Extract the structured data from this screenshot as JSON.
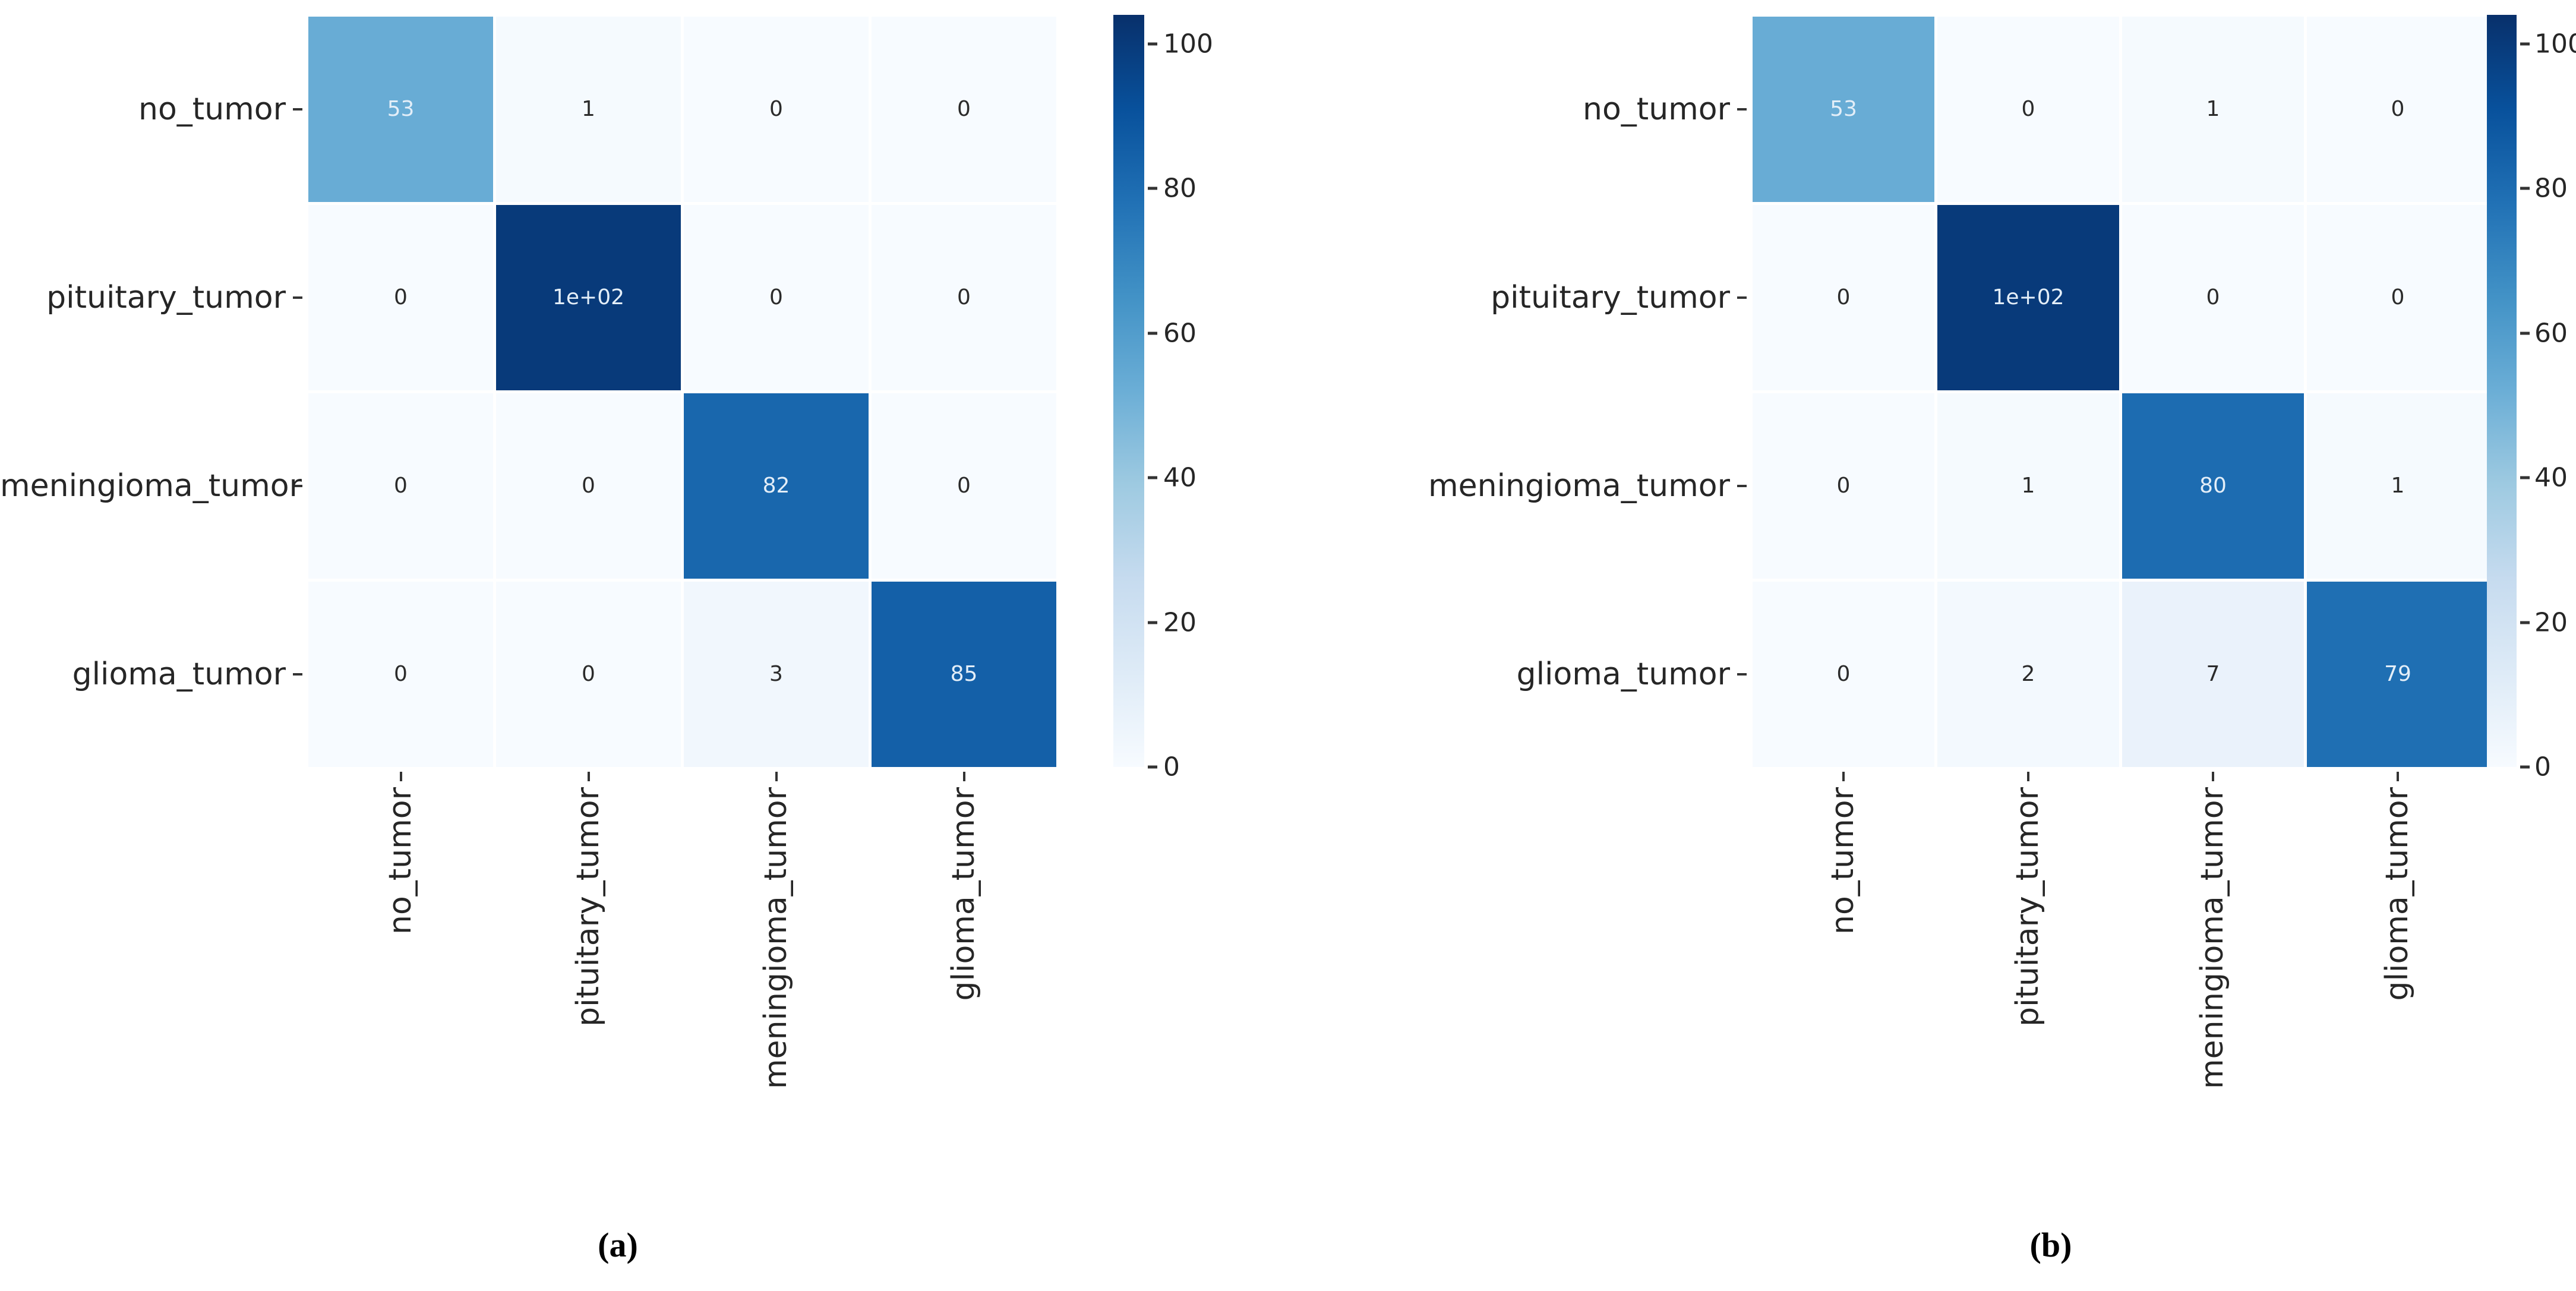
{
  "chart_data": [
    {
      "type": "heatmap",
      "caption": "(a)",
      "x_categories": [
        "no_tumor",
        "pituitary_tumor",
        "meningioma_tumor",
        "glioma_tumor"
      ],
      "y_categories": [
        "no_tumor",
        "pituitary_tumor",
        "meningioma_tumor",
        "glioma_tumor"
      ],
      "values": [
        [
          53,
          1,
          0,
          0
        ],
        [
          0,
          100,
          0,
          0
        ],
        [
          0,
          0,
          82,
          0
        ],
        [
          0,
          0,
          3,
          85
        ]
      ],
      "annotations": [
        [
          "53",
          "1",
          "0",
          "0"
        ],
        [
          "0",
          "1e+02",
          "0",
          "0"
        ],
        [
          "0",
          "0",
          "82",
          "0"
        ],
        [
          "0",
          "0",
          "3",
          "85"
        ]
      ],
      "colormap": "Blues",
      "vmin": 0,
      "vmax": 104,
      "colorbar_ticks": [
        0,
        20,
        40,
        60,
        80,
        100
      ],
      "colorbar_position": "right",
      "grid": "off"
    },
    {
      "type": "heatmap",
      "caption": "(b)",
      "x_categories": [
        "no_tumor",
        "pituitary_tumor",
        "meningioma_tumor",
        "glioma_tumor"
      ],
      "y_categories": [
        "no_tumor",
        "pituitary_tumor",
        "meningioma_tumor",
        "glioma_tumor"
      ],
      "values": [
        [
          53,
          0,
          1,
          0
        ],
        [
          0,
          100,
          0,
          0
        ],
        [
          0,
          1,
          80,
          1
        ],
        [
          0,
          2,
          7,
          79
        ]
      ],
      "annotations": [
        [
          "53",
          "0",
          "1",
          "0"
        ],
        [
          "0",
          "1e+02",
          "0",
          "0"
        ],
        [
          "0",
          "1",
          "80",
          "1"
        ],
        [
          "0",
          "2",
          "7",
          "79"
        ]
      ],
      "colormap": "Blues",
      "vmin": 0,
      "vmax": 104,
      "colorbar_ticks": [
        0,
        20,
        40,
        60,
        80,
        100
      ],
      "colorbar_position": "right",
      "grid": "off"
    }
  ],
  "colors": {
    "background": "#ffffff",
    "colormap_stops": [
      "#f7fbff",
      "#deebf7",
      "#c6dbef",
      "#9ecae1",
      "#6baed6",
      "#4292c6",
      "#2171b5",
      "#08519c",
      "#08306b"
    ],
    "label_color": "#262626",
    "annotation_light": "#e3eef8",
    "annotation_dark": "#2b2b2b"
  }
}
